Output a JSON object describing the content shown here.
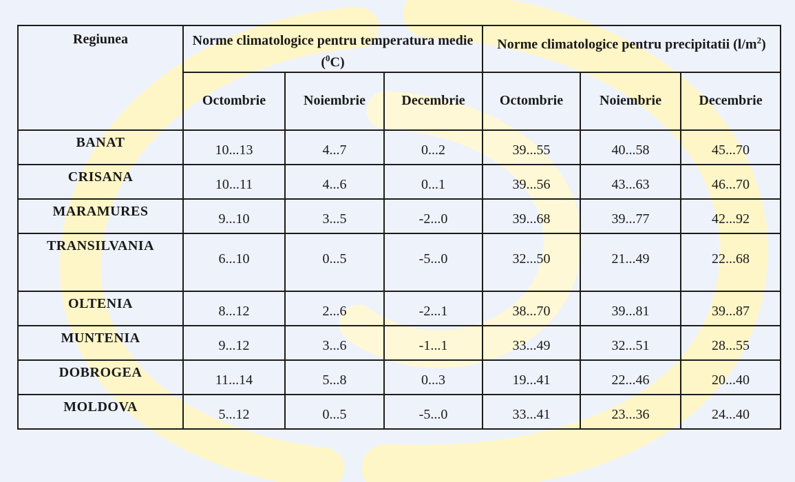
{
  "colors": {
    "background": "#eef3fb",
    "watermark": "#fff6c8",
    "border": "#1b1b1b"
  },
  "table": {
    "header": {
      "region": "Regiunea",
      "temperature_group": "Norme climatologice pentru temperatura medie (",
      "temperature_sup": "0",
      "temperature_unit": "C)",
      "precip_group": "Norme climatologice pentru precipitatii (l/m",
      "precip_sup": "2",
      "precip_close": ")",
      "months": [
        "Octombrie",
        "Noiembrie",
        "Decembrie",
        "Octombrie",
        "Noiembrie",
        "Decembrie"
      ]
    },
    "rows": [
      {
        "region": "BANAT",
        "t_oct": "10...13",
        "t_nov": "4...7",
        "t_dec": "0...2",
        "p_oct": "39...55",
        "p_nov": "40...58",
        "p_dec": "45...70"
      },
      {
        "region": "CRISANA",
        "t_oct": "10...11",
        "t_nov": "4...6",
        "t_dec": "0...1",
        "p_oct": "39...56",
        "p_nov": "43...63",
        "p_dec": "46...70"
      },
      {
        "region": "MARAMURES",
        "t_oct": "9...10",
        "t_nov": "3...5",
        "t_dec": "-2...0",
        "p_oct": "39...68",
        "p_nov": "39...77",
        "p_dec": "42...92"
      },
      {
        "region": "TRANSILVANIA",
        "t_oct": "6...10",
        "t_nov": "0...5",
        "t_dec": "-5...0",
        "p_oct": "32...50",
        "p_nov": "21...49",
        "p_dec": "22...68"
      },
      {
        "region": "OLTENIA",
        "t_oct": "8...12",
        "t_nov": "2...6",
        "t_dec": "-2...1",
        "p_oct": "38...70",
        "p_nov": "39...81",
        "p_dec": "39...87"
      },
      {
        "region": "MUNTENIA",
        "t_oct": "9...12",
        "t_nov": "3...6",
        "t_dec": "-1...1",
        "p_oct": "33...49",
        "p_nov": "32...51",
        "p_dec": "28...55"
      },
      {
        "region": "DOBROGEA",
        "t_oct": "11...14",
        "t_nov": "5...8",
        "t_dec": "0...3",
        "p_oct": "19...41",
        "p_nov": "22...46",
        "p_dec": "20...40"
      },
      {
        "region": "MOLDOVA",
        "t_oct": "5...12",
        "t_nov": "0...5",
        "t_dec": "-5...0",
        "p_oct": "33...41",
        "p_nov": "23...36",
        "p_dec": "24...40"
      }
    ]
  }
}
